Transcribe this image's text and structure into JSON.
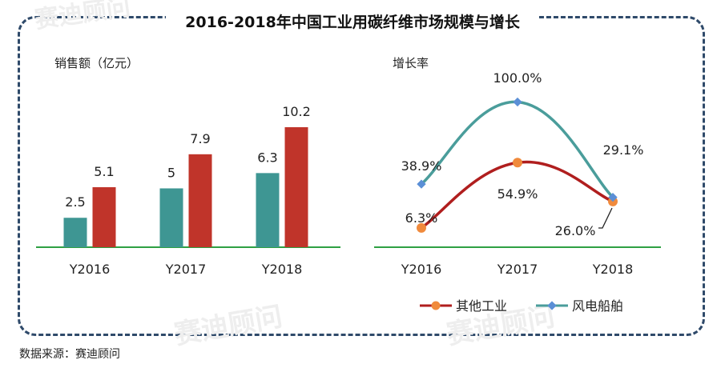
{
  "title": "2016-2018年中国工业用碳纤维市场规模与增长",
  "source": "数据来源：赛迪顾问",
  "watermark": "赛迪顾问",
  "chart_data": [
    {
      "type": "bar",
      "ylabel": "销售额（亿元）",
      "categories": [
        "Y2016",
        "Y2017",
        "Y2018"
      ],
      "series": [
        {
          "name": "风电船舶",
          "color": "#3e9693",
          "values": [
            2.5,
            5,
            6.3
          ]
        },
        {
          "name": "其他工业",
          "color": "#c0342a",
          "values": [
            5.1,
            7.9,
            10.2
          ]
        }
      ],
      "value_labels": [
        [
          "2.5",
          "5",
          "6.3"
        ],
        [
          "5.1",
          "7.9",
          "10.2"
        ]
      ],
      "ylim": [
        0,
        12
      ]
    },
    {
      "type": "line",
      "ylabel": "增长率",
      "categories": [
        "Y2016",
        "Y2017",
        "Y2018"
      ],
      "series": [
        {
          "name": "其他工业",
          "color": "#b01e1e",
          "marker_color": "#f08a3c",
          "values": [
            6.3,
            54.9,
            26.0
          ],
          "labels": [
            "6.3%",
            "54.9%",
            "26.0%"
          ]
        },
        {
          "name": "风电船舶",
          "color": "#4a9d9b",
          "marker_color": "#5b8fd6",
          "values": [
            38.9,
            100.0,
            29.1
          ],
          "labels": [
            "38.9%",
            "100.0%",
            "29.1%"
          ]
        }
      ],
      "legend": [
        "其他工业",
        "风电船舶"
      ],
      "legend_position": "bottom",
      "ylim": [
        0,
        100
      ]
    }
  ]
}
